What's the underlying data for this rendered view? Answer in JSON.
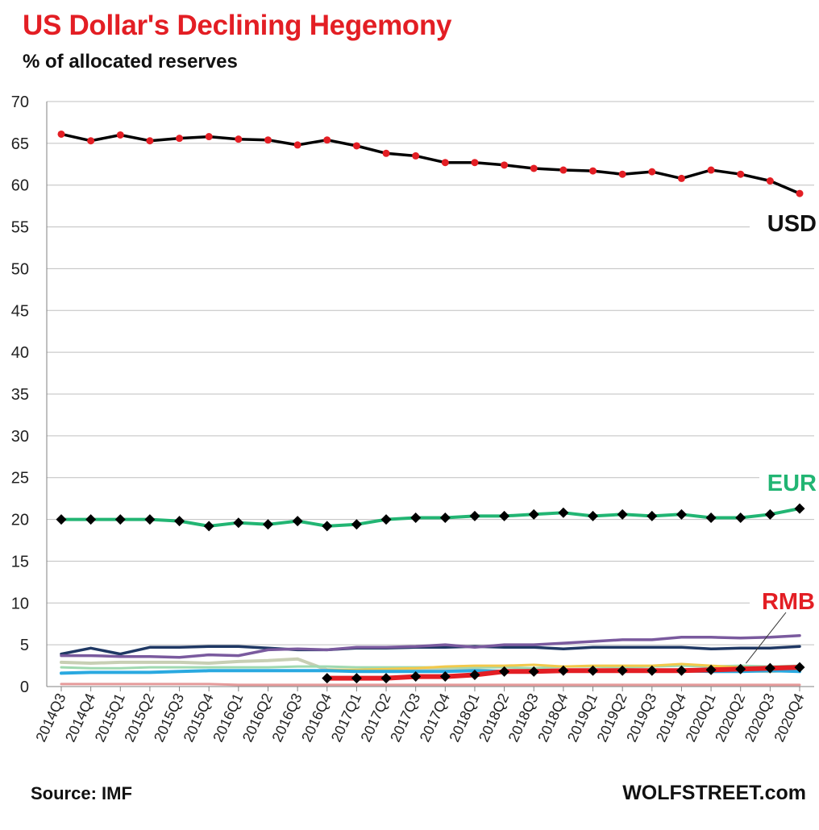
{
  "title": "US Dollar's  Declining Hegemony",
  "subtitle": "% of allocated reserves",
  "source": "Source: IMF",
  "brand": "WOLFSTREET.com",
  "chart_data": {
    "type": "line",
    "ylim": [
      0,
      70
    ],
    "yticks": [
      0,
      5,
      10,
      15,
      20,
      25,
      30,
      35,
      40,
      45,
      50,
      55,
      60,
      65,
      70
    ],
    "grid": true,
    "categories": [
      "2014Q3",
      "2014Q4",
      "2015Q1",
      "2015Q2",
      "2015Q3",
      "2015Q4",
      "2016Q1",
      "2016Q2",
      "2016Q3",
      "2016Q4",
      "2017Q1",
      "2017Q2",
      "2017Q3",
      "2017Q4",
      "2018Q1",
      "2018Q2",
      "2018Q3",
      "2018Q4",
      "2019Q1",
      "2019Q2",
      "2019Q3",
      "2019Q4",
      "2020Q1",
      "2020Q2",
      "2020Q3",
      "2020Q4"
    ],
    "series": [
      {
        "name": "USD",
        "color": "#000000",
        "marker": "#e31e24",
        "markerShape": "circle",
        "width": 3.5,
        "values": [
          66.1,
          65.3,
          66.0,
          65.3,
          65.6,
          65.8,
          65.5,
          65.4,
          64.8,
          65.4,
          64.7,
          63.8,
          63.5,
          62.7,
          62.7,
          62.4,
          62.0,
          61.8,
          61.7,
          61.3,
          61.6,
          60.8,
          61.8,
          61.3,
          60.5,
          59.0
        ]
      },
      {
        "name": "EUR",
        "color": "#22b573",
        "marker": "#000000",
        "markerShape": "diamond",
        "width": 4,
        "values": [
          20.0,
          20.0,
          20.0,
          20.0,
          19.8,
          19.2,
          19.6,
          19.4,
          19.8,
          19.2,
          19.4,
          20.0,
          20.2,
          20.2,
          20.4,
          20.4,
          20.6,
          20.8,
          20.4,
          20.6,
          20.4,
          20.6,
          20.2,
          20.2,
          20.6,
          21.3
        ]
      },
      {
        "color": "#1f3864",
        "width": 3.5,
        "values": [
          3.9,
          4.6,
          3.9,
          4.7,
          4.7,
          4.8,
          4.8,
          4.6,
          4.4,
          4.4,
          4.6,
          4.6,
          4.7,
          4.7,
          4.8,
          4.7,
          4.7,
          4.5,
          4.7,
          4.7,
          4.7,
          4.7,
          4.5,
          4.6,
          4.6,
          4.8
        ]
      },
      {
        "color": "#7a5a9e",
        "width": 3.5,
        "values": [
          3.7,
          3.7,
          3.6,
          3.6,
          3.5,
          3.8,
          3.7,
          4.4,
          4.5,
          4.4,
          4.7,
          4.7,
          4.8,
          5.0,
          4.7,
          5.0,
          5.0,
          5.2,
          5.4,
          5.6,
          5.6,
          5.9,
          5.9,
          5.8,
          5.9,
          6.1
        ]
      },
      {
        "color": "#c7cfb4",
        "width": 4,
        "values": [
          2.9,
          2.8,
          2.9,
          2.9,
          2.9,
          2.8,
          3.0,
          3.1,
          3.3,
          2.0,
          1.9,
          1.9,
          2.0,
          2.0,
          2.0,
          1.8,
          1.9,
          1.8,
          1.9,
          1.9,
          1.8,
          1.9,
          1.8,
          1.9,
          1.8,
          2.0
        ]
      },
      {
        "color": "#9fd9b0",
        "width": 3,
        "values": [
          2.3,
          2.2,
          2.2,
          2.3,
          2.3,
          2.3,
          2.3,
          2.3,
          2.4,
          2.4,
          2.3,
          2.3,
          2.3,
          2.3,
          2.3,
          2.3,
          2.2,
          2.4,
          2.4,
          2.3,
          2.4,
          2.5,
          2.4,
          2.5,
          2.4,
          2.5
        ]
      },
      {
        "color": "#f2c94c",
        "width": 3,
        "values": [
          null,
          null,
          null,
          null,
          null,
          null,
          null,
          null,
          null,
          2.0,
          2.0,
          2.1,
          2.2,
          2.4,
          2.5,
          2.5,
          2.6,
          2.4,
          2.5,
          2.5,
          2.5,
          2.7,
          2.5,
          2.3,
          2.2,
          2.1
        ]
      },
      {
        "color": "#2aa9e0",
        "width": 4,
        "values": [
          1.6,
          1.7,
          1.7,
          1.7,
          1.8,
          1.9,
          1.9,
          1.9,
          1.9,
          1.9,
          1.8,
          1.8,
          1.8,
          1.8,
          1.9,
          1.8,
          1.9,
          1.9,
          1.9,
          1.9,
          1.9,
          1.9,
          1.8,
          1.8,
          1.9,
          1.8
        ]
      },
      {
        "color": "#e59a9a",
        "width": 3,
        "values": [
          0.3,
          0.3,
          0.3,
          0.3,
          0.3,
          0.3,
          0.2,
          0.2,
          0.2,
          0.2,
          0.2,
          0.2,
          0.2,
          0.2,
          0.2,
          0.2,
          0.2,
          0.2,
          0.2,
          0.2,
          0.2,
          0.2,
          0.2,
          0.2,
          0.2,
          0.2
        ]
      },
      {
        "name": "RMB",
        "color": "#e31e24",
        "marker": "#000000",
        "markerShape": "diamond",
        "width": 6,
        "values": [
          null,
          null,
          null,
          null,
          null,
          null,
          null,
          null,
          null,
          1.0,
          1.0,
          1.0,
          1.2,
          1.2,
          1.4,
          1.8,
          1.8,
          1.9,
          1.9,
          1.9,
          1.9,
          1.9,
          2.0,
          2.1,
          2.2,
          2.3
        ]
      }
    ]
  }
}
